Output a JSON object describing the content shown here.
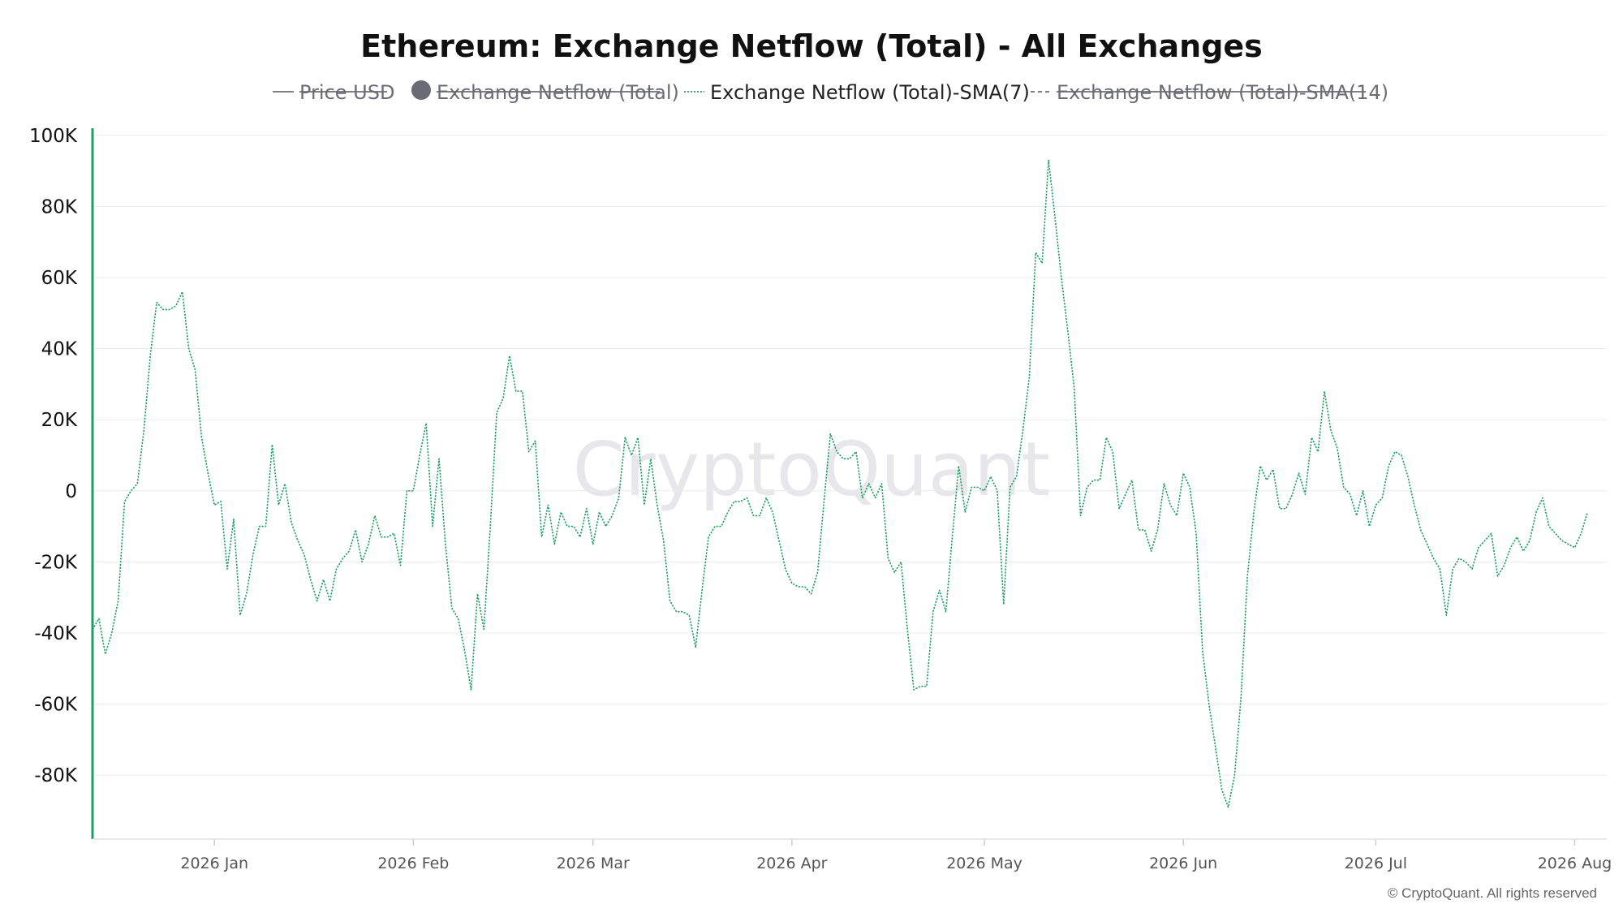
{
  "chart_data": {
    "type": "line",
    "title": "Ethereum: Exchange Netflow (Total) - All Exchanges",
    "watermark": "CryptoQuant",
    "credit": "© CryptoQuant. All rights reserved",
    "legend": {
      "placement": "top-center",
      "items": [
        {
          "label": "Price USD",
          "marker": "line",
          "active": false
        },
        {
          "label": "Exchange Netflow (Total)",
          "marker": "circle",
          "active": false
        },
        {
          "label": "Exchange Netflow (Total)-SMA(7)",
          "marker": "dotted-line",
          "active": true
        },
        {
          "label": "Exchange Netflow (Total)-SMA(14)",
          "marker": "dashed-line",
          "active": false
        }
      ]
    },
    "y_ticks": [
      {
        "value": 100000,
        "label": "100K"
      },
      {
        "value": 80000,
        "label": "80K"
      },
      {
        "value": 60000,
        "label": "60K"
      },
      {
        "value": 40000,
        "label": "40K"
      },
      {
        "value": 20000,
        "label": "20K"
      },
      {
        "value": 0,
        "label": "0"
      },
      {
        "value": -20000,
        "label": "-20K"
      },
      {
        "value": -40000,
        "label": "-40K"
      },
      {
        "value": -60000,
        "label": "-60K"
      },
      {
        "value": -80000,
        "label": "-80K"
      }
    ],
    "x_ticks": [
      {
        "date": "2026-01-01",
        "label": "2026 Jan"
      },
      {
        "date": "2026-02-01",
        "label": "2026 Feb"
      },
      {
        "date": "2026-03-01",
        "label": "2026 Mar"
      },
      {
        "date": "2026-04-01",
        "label": "2026 Apr"
      },
      {
        "date": "2026-05-01",
        "label": "2026 May"
      },
      {
        "date": "2026-06-01",
        "label": "2026 Jun"
      },
      {
        "date": "2026-07-01",
        "label": "2026 Jul"
      },
      {
        "date": "2026-08-01",
        "label": "2026 Aug"
      }
    ],
    "xlim": [
      "2025-12-13",
      "2026-08-06"
    ],
    "ylim": [
      -98000,
      102000
    ],
    "grid": "horizontal",
    "colors": {
      "series": "#1f9e64",
      "axis": "#1f9e64",
      "grid": "#ececec",
      "legend_off": "#6b6b75"
    },
    "series": [
      {
        "name": "Exchange Netflow (Total)-SMA(7)",
        "active": true,
        "start_date": "2025-12-13",
        "step_days": 1,
        "values": [
          -39000,
          -36000,
          -46000,
          -40000,
          -31000,
          -3000,
          0,
          2000,
          17000,
          38000,
          53000,
          51000,
          51000,
          52000,
          56000,
          40000,
          34000,
          15000,
          5000,
          -4000,
          -3000,
          -22000,
          -8000,
          -35000,
          -29000,
          -18000,
          -10000,
          -10000,
          13000,
          -4000,
          2000,
          -9000,
          -14000,
          -18000,
          -25000,
          -31000,
          -25000,
          -31000,
          -22000,
          -19000,
          -17000,
          -11000,
          -20000,
          -15000,
          -7000,
          -13000,
          -13000,
          -12000,
          -21000,
          0,
          0,
          10000,
          19000,
          -10000,
          9000,
          -15000,
          -33000,
          -36000,
          -45000,
          -56000,
          -29000,
          -39000,
          -10000,
          22000,
          26000,
          38000,
          28000,
          28000,
          11000,
          14000,
          -13000,
          -4000,
          -15000,
          -6000,
          -10000,
          -10000,
          -13000,
          -5000,
          -15000,
          -6000,
          -10000,
          -7000,
          -2000,
          15000,
          10000,
          15000,
          -4000,
          9000,
          -4000,
          -14000,
          -31000,
          -34000,
          -34000,
          -35000,
          -44000,
          -28000,
          -13000,
          -10000,
          -10000,
          -6000,
          -3000,
          -3000,
          -2000,
          -7000,
          -7000,
          -2000,
          -6000,
          -14000,
          -22000,
          -26000,
          -27000,
          -27000,
          -29000,
          -23000,
          -3000,
          16000,
          11000,
          9000,
          9000,
          11000,
          -2000,
          2000,
          -2000,
          2000,
          -19000,
          -23000,
          -20000,
          -39000,
          -56000,
          -55000,
          -55000,
          -34000,
          -28000,
          -34000,
          -13000,
          7000,
          -6000,
          1000,
          1000,
          0,
          4000,
          0,
          -32000,
          1000,
          4000,
          17000,
          32000,
          67000,
          64000,
          93000,
          77000,
          60000,
          45000,
          29000,
          -7000,
          1000,
          3000,
          3000,
          15000,
          11000,
          -5000,
          -1000,
          3000,
          -11000,
          -11000,
          -17000,
          -11000,
          2000,
          -4000,
          -7000,
          5000,
          1000,
          -12000,
          -45000,
          -60000,
          -72000,
          -84000,
          -89000,
          -80000,
          -58000,
          -24000,
          -6000,
          7000,
          3000,
          6000,
          -5000,
          -5000,
          -1000,
          5000,
          -1000,
          15000,
          11000,
          28000,
          17000,
          12000,
          1000,
          -1000,
          -7000,
          0,
          -10000,
          -4000,
          -2000,
          7000,
          11000,
          10000,
          4000,
          -4000,
          -11000,
          -15000,
          -19000,
          -22000,
          -35000,
          -22000,
          -19000,
          -20000,
          -22000,
          -16000,
          -14000,
          -12000,
          -24000,
          -21000,
          -16000,
          -13000,
          -17000,
          -14000,
          -6000,
          -2000,
          -10000,
          -12000,
          -14000,
          -15000,
          -16000,
          -12000,
          -6000
        ]
      }
    ]
  }
}
